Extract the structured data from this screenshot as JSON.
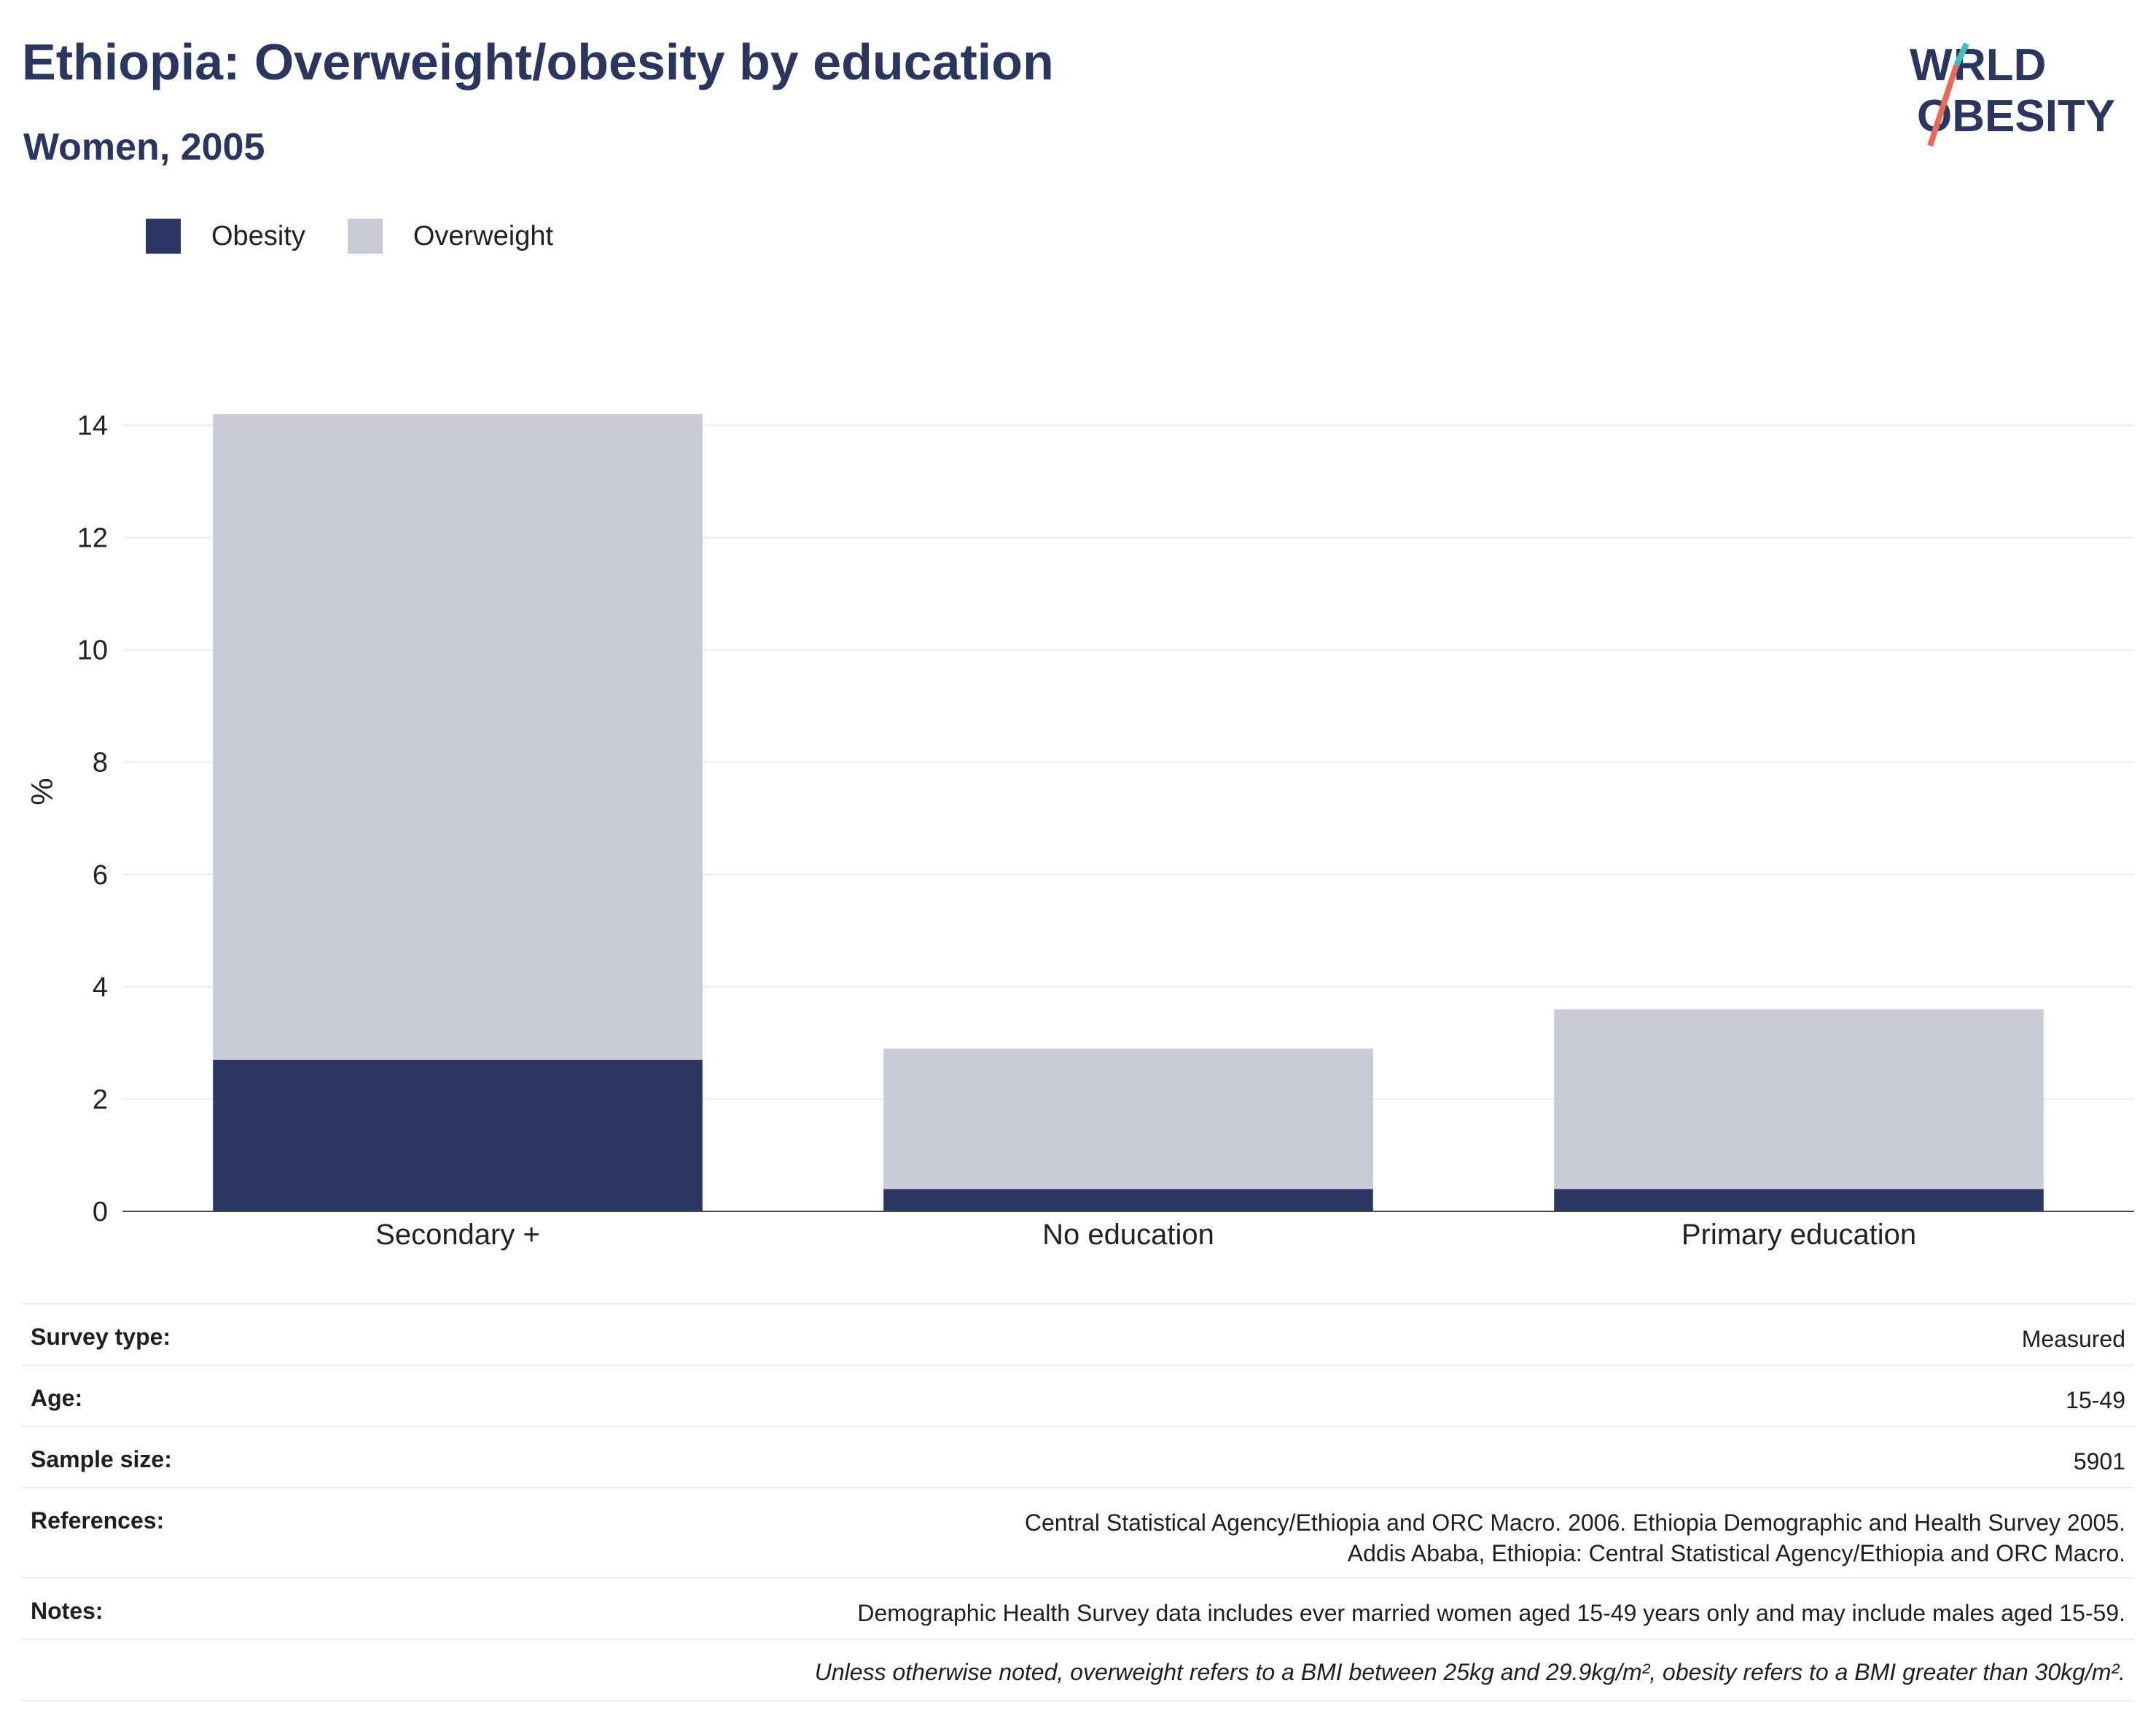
{
  "header": {
    "title": "Ethiopia: Overweight/obesity by education",
    "subtitle": "Women, 2005",
    "logo_line1": "WORLD",
    "logo_line2": "OBESITY"
  },
  "legend": [
    {
      "label": "Obesity",
      "color": "#2b3662"
    },
    {
      "label": "Overweight",
      "color": "#c9ccd7"
    }
  ],
  "chart_data": {
    "type": "bar",
    "stacked": true,
    "categories": [
      "Secondary +",
      "No education",
      "Primary education"
    ],
    "series": [
      {
        "name": "Obesity",
        "values": [
          2.7,
          0.4,
          0.4
        ],
        "color": "#2b3662"
      },
      {
        "name": "Overweight",
        "values": [
          11.5,
          2.5,
          3.2
        ],
        "color": "#c9ccd7"
      }
    ],
    "ylabel": "%",
    "ylim": [
      0,
      14.5
    ],
    "yticks": [
      0,
      2,
      4,
      6,
      8,
      10,
      12,
      14
    ],
    "grid": true,
    "legend_position": "top-left"
  },
  "info": {
    "rows": [
      {
        "key": "Survey type:",
        "value": "Measured"
      },
      {
        "key": "Age:",
        "value": "15-49"
      },
      {
        "key": "Sample size:",
        "value": "5901"
      },
      {
        "key": "References:",
        "value": "Central Statistical Agency/Ethiopia and ORC Macro. 2006. Ethiopia Demographic and Health Survey 2005. Addis Ababa, Ethiopia: Central Statistical Agency/Ethiopia and ORC Macro."
      },
      {
        "key": "Notes:",
        "value": "Demographic Health Survey data includes ever married women aged 15-49 years only and may include males aged 15-59."
      }
    ],
    "footnote": "Unless otherwise noted, overweight refers to a BMI between 25kg and 29.9kg/m², obesity refers to a BMI greater than 30kg/m²."
  }
}
